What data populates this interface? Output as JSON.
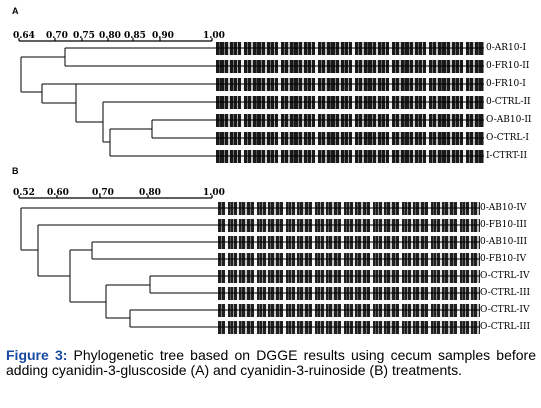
{
  "panel_a": {
    "letter": "A",
    "scale": [
      "0.64",
      "0.70",
      "0.75",
      "0.80",
      "0.85",
      "0.90",
      "1.00"
    ],
    "lanes": [
      "0-AR10-I",
      "0-FR10-II",
      "0-FR10-I",
      "0-CTRL-II",
      "O-AB10-II",
      "O-CTRL-I",
      "I-CTRT-II"
    ]
  },
  "panel_b": {
    "letter": "B",
    "scale": [
      "0.52",
      "0.60",
      "0.70",
      "0.80",
      "1.00"
    ],
    "lanes": [
      "0-AB10-IV",
      "0-FB10-III",
      "0-AB10-III",
      "0-FB10-IV",
      "O-CTRL-IV",
      "O-CTRL-III",
      "O-CTRL-IV",
      "O-CTRL-III"
    ]
  },
  "caption": {
    "figure_label": "Figure 3:",
    "text": " Phylogenetic tree based on DGGE results using cecum samples before adding cyanidin-3-gluscoside (A) and cyanidin-3-ruinoside (B) treatments."
  }
}
